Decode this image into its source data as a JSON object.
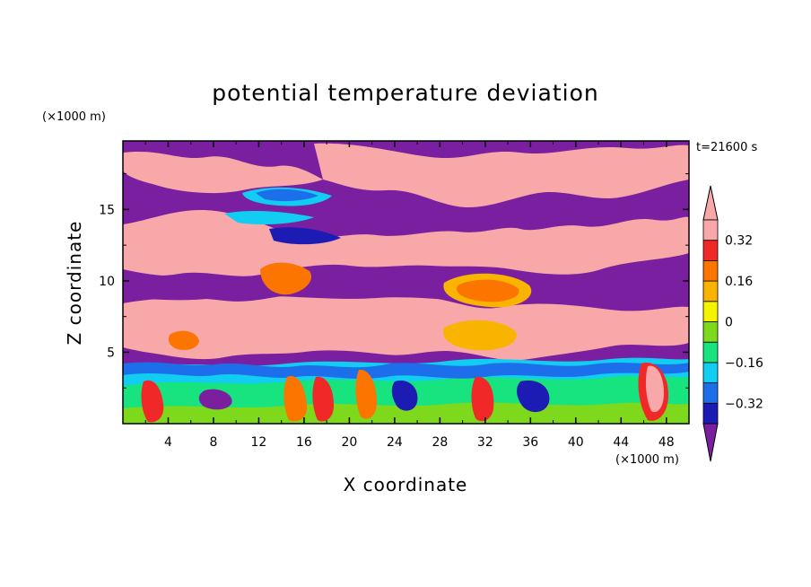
{
  "chart_data": {
    "type": "heatmap",
    "title": "potential temperature deviation",
    "xlabel": "X coordinate",
    "ylabel": "Z coordinate",
    "x_unit": "(×1000 m)",
    "y_unit": "(×1000 m)",
    "time_label": "t=21600 s",
    "xlim": [
      0,
      50
    ],
    "ylim": [
      0,
      19.8
    ],
    "x_ticks": [
      "4",
      "8",
      "12",
      "16",
      "20",
      "24",
      "28",
      "32",
      "36",
      "40",
      "44",
      "48"
    ],
    "y_ticks": [
      "5",
      "10",
      "15"
    ],
    "colorbar": {
      "levels": [
        -0.4,
        -0.32,
        -0.24,
        -0.16,
        -0.08,
        0,
        0.08,
        0.16,
        0.24,
        0.32,
        0.4
      ],
      "labels": [
        "0.32",
        "0.16",
        "0",
        "-0.16",
        "-0.32"
      ],
      "colors": [
        "#7a1fa0",
        "#1c1cb4",
        "#1d6eeb",
        "#12cdf2",
        "#17e47e",
        "#7ed81c",
        "#f4f400",
        "#f9b400",
        "#fb7500",
        "#f02828",
        "#f8a8a8"
      ],
      "extend": "both"
    },
    "field_description": "low levels (z<5) show alternating warm/cold plumes; upper levels banded purple (cold) and pink (warm)"
  }
}
